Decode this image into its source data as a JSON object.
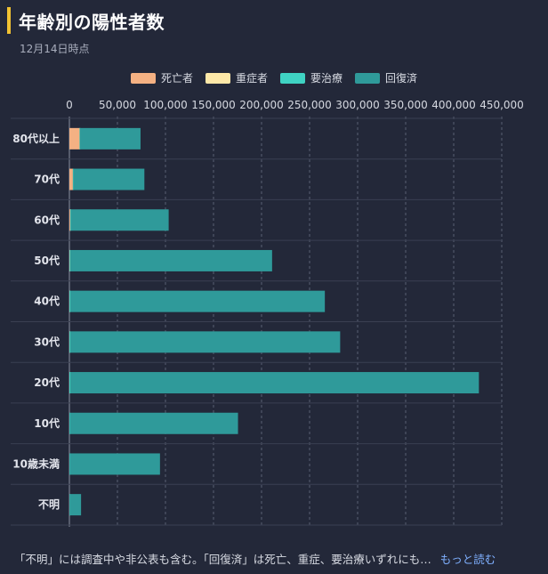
{
  "header": {
    "title": "年齢別の陽性者数",
    "subtitle": "12月14日時点"
  },
  "legend": [
    {
      "label": "死亡者",
      "color": "#f4b183"
    },
    {
      "label": "重症者",
      "color": "#fde8a8"
    },
    {
      "label": "要治療",
      "color": "#3fd3c3"
    },
    {
      "label": "回復済",
      "color": "#2f9a9a"
    }
  ],
  "chart_data": {
    "type": "bar",
    "orientation": "horizontal",
    "stacked": true,
    "xlim": [
      0,
      450000
    ],
    "xticks": [
      "0",
      "50,000",
      "100,000",
      "150,000",
      "200,000",
      "250,000",
      "300,000",
      "350,000",
      "400,000",
      "450,000"
    ],
    "tick_step": 50000,
    "categories": [
      "80代以上",
      "70代",
      "60代",
      "50代",
      "40代",
      "30代",
      "20代",
      "10代",
      "10歳未満",
      "不明"
    ],
    "series": [
      {
        "name": "死亡者",
        "color": "#f4b183",
        "values": [
          10500,
          3500,
          800,
          200,
          50,
          20,
          10,
          0,
          0,
          100
        ]
      },
      {
        "name": "重症者",
        "color": "#fde8a8",
        "values": [
          150,
          150,
          130,
          80,
          30,
          10,
          5,
          0,
          0,
          0
        ]
      },
      {
        "name": "要治療",
        "color": "#3fd3c3",
        "values": [
          400,
          400,
          400,
          700,
          800,
          800,
          1200,
          500,
          300,
          50
        ]
      },
      {
        "name": "回復済",
        "color": "#2f9a9a",
        "values": [
          63000,
          74000,
          102000,
          210000,
          265000,
          281000,
          425000,
          175000,
          94000,
          12000
        ]
      }
    ],
    "grid": true
  },
  "footnote": {
    "text": "「不明」には調査中や非公表も含む。「回復済」は死亡、重症、要治療いずれにも…",
    "more": "もっと読む"
  }
}
